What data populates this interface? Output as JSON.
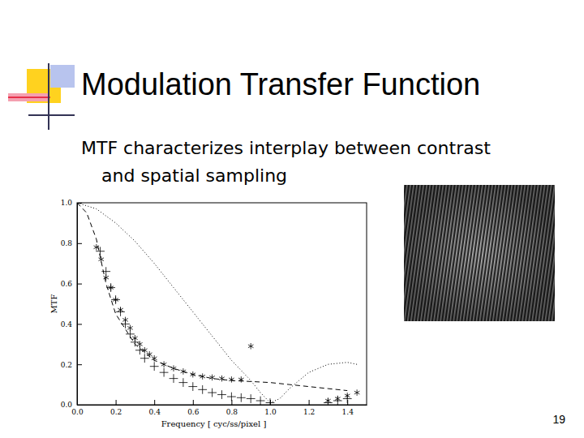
{
  "slide": {
    "title": "Modulation Transfer Function",
    "text": [
      "MTF characterizes interplay between contrast",
      "and spatial sampling"
    ],
    "page": "19"
  },
  "chart_data": {
    "type": "line",
    "x_label": "Frequency [ cyc/ss/pixel ]",
    "y_label": "MTF",
    "xlim": [
      0,
      1.5
    ],
    "ylim": [
      0,
      1.0
    ],
    "xticks": [
      {
        "value": 0,
        "label": "0.0"
      },
      0.2,
      0.4,
      0.6,
      0.8,
      {
        "value": 1,
        "label": "1.0"
      },
      1.2,
      1.4
    ],
    "yticks": [
      {
        "value": 0,
        "label": "0.0"
      },
      0.2,
      0.4,
      0.6,
      0.8,
      {
        "value": 1,
        "label": "1.0"
      }
    ],
    "grid": false,
    "tick_labels": true,
    "series": [
      {
        "type": "line",
        "line_style": "dotted",
        "color": "#000000",
        "x": [
          0,
          0.1,
          0.2,
          0.3,
          0.4,
          0.5,
          0.6,
          0.7,
          0.8,
          0.9,
          0.95,
          1.0,
          1.05,
          1.1,
          1.15,
          1.2,
          1.3,
          1.4,
          1.45
        ],
        "values": [
          1.0,
          0.97,
          0.9,
          0.81,
          0.7,
          0.58,
          0.46,
          0.34,
          0.22,
          0.12,
          0.06,
          0.01,
          0.03,
          0.08,
          0.12,
          0.16,
          0.2,
          0.21,
          0.2
        ]
      },
      {
        "type": "line",
        "line_style": "dashed",
        "color": "#000000",
        "x": [
          0,
          0.05,
          0.1,
          0.15,
          0.2,
          0.3,
          0.4,
          0.5,
          0.6,
          0.7,
          0.8,
          0.9,
          1.0,
          1.1,
          1.2,
          1.3,
          1.4
        ],
        "values": [
          1.0,
          0.95,
          0.82,
          0.6,
          0.45,
          0.3,
          0.22,
          0.18,
          0.15,
          0.13,
          0.12,
          0.115,
          0.11,
          0.1,
          0.09,
          0.08,
          0.07
        ]
      },
      {
        "type": "scatter",
        "marker": "asterisk",
        "color": "#000000",
        "x": [
          0.1,
          0.125,
          0.15,
          0.175,
          0.2,
          0.225,
          0.25,
          0.275,
          0.3,
          0.325,
          0.35,
          0.375,
          0.4,
          0.45,
          0.5,
          0.55,
          0.6,
          0.65,
          0.7,
          0.75,
          0.8,
          0.85,
          0.9,
          1.3,
          1.35,
          1.4,
          1.45
        ],
        "values": [
          0.78,
          0.72,
          0.63,
          0.58,
          0.52,
          0.47,
          0.42,
          0.38,
          0.33,
          0.3,
          0.27,
          0.25,
          0.23,
          0.2,
          0.18,
          0.165,
          0.15,
          0.14,
          0.135,
          0.13,
          0.125,
          0.125,
          0.29,
          0.02,
          0.03,
          0.045,
          0.06
        ]
      },
      {
        "type": "scatter",
        "marker": "plus",
        "color": "#000000",
        "x": [
          0.12,
          0.15,
          0.175,
          0.2,
          0.225,
          0.25,
          0.275,
          0.3,
          0.325,
          0.35,
          0.4,
          0.45,
          0.5,
          0.55,
          0.6,
          0.65,
          0.7,
          0.75,
          0.8,
          0.85,
          0.9,
          0.95,
          1.0,
          1.3,
          1.35,
          1.4
        ],
        "values": [
          0.76,
          0.66,
          0.58,
          0.52,
          0.46,
          0.4,
          0.35,
          0.31,
          0.27,
          0.23,
          0.19,
          0.16,
          0.13,
          0.11,
          0.09,
          0.075,
          0.06,
          0.05,
          0.04,
          0.035,
          0.03,
          0.02,
          0.01,
          0.01,
          0.02,
          0.03
        ]
      }
    ]
  }
}
